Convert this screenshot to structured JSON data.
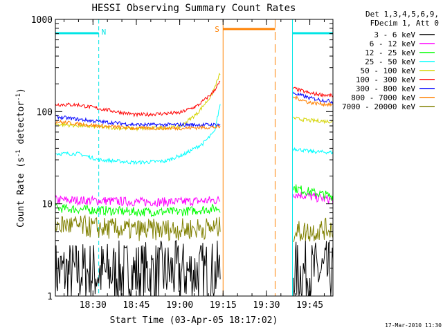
{
  "chart_data": {
    "type": "line",
    "title": "HESSI Observing Summary Count Rates",
    "xlabel": "Start Time (03-Apr-05 18:17:02)",
    "ylabel_main": "Count Rate (s",
    "ylabel_sup1": "-1",
    "ylabel_mid": " detector",
    "ylabel_sup2": "-1",
    "ylabel_end": ")",
    "yscale": "log",
    "ylim": [
      1,
      1000
    ],
    "xlim": [
      "18:17",
      "19:53"
    ],
    "x_ticks": [
      "18:30",
      "18:45",
      "19:00",
      "19:15",
      "19:30",
      "19:45"
    ],
    "y_ticks": [
      "1",
      "10",
      "100",
      "1000"
    ],
    "grid": false,
    "legend_placement": "right",
    "legend_header": [
      "Det 1,3,4,5,6,9,",
      "FDecim 1, Att 0"
    ],
    "timestamp": "17-Mar-2010 11:30",
    "flags": {
      "night_color": "#00e5e5",
      "saa_color": "#ff8000",
      "night_label": "N",
      "saa_label": "S",
      "night_intervals": [
        [
          "18:17",
          "18:32"
        ],
        [
          "19:39",
          "19:53"
        ]
      ],
      "saa_interval": [
        "19:15",
        "19:33"
      ],
      "gaps": [
        [
          "19:14",
          "19:39"
        ]
      ]
    },
    "series": [
      {
        "name": "3 - 6 keV",
        "color": "#000000",
        "x": [
          "18:17",
          "18:32",
          "18:45",
          "19:00",
          "19:14",
          "19:39",
          "19:53"
        ],
        "y": [
          1.8,
          1.8,
          1.8,
          1.8,
          1.8,
          1.8,
          1.8
        ]
      },
      {
        "name": "6 - 12 keV",
        "color": "#ff00ff",
        "x": [
          "18:17",
          "18:32",
          "18:45",
          "19:00",
          "19:14",
          "19:39",
          "19:45",
          "19:53"
        ],
        "y": [
          11,
          10.8,
          10.5,
          10.5,
          11,
          13,
          12,
          11
        ]
      },
      {
        "name": "12 - 25 keV",
        "color": "#00ff00",
        "x": [
          "18:17",
          "18:32",
          "18:45",
          "19:00",
          "19:14",
          "19:39",
          "19:45",
          "19:53"
        ],
        "y": [
          9,
          8.5,
          8.2,
          8.2,
          9,
          15,
          13.5,
          12
        ]
      },
      {
        "name": "25 - 50 keV",
        "color": "#00ffff",
        "x": [
          "18:17",
          "18:25",
          "18:32",
          "18:45",
          "18:55",
          "19:02",
          "19:08",
          "19:12",
          "19:14",
          "19:39",
          "19:45",
          "19:53"
        ],
        "y": [
          35,
          35,
          30,
          28,
          29,
          35,
          45,
          60,
          120,
          40,
          37,
          36
        ]
      },
      {
        "name": "50 - 100 keV",
        "color": "#d4d400",
        "x": [
          "18:17",
          "18:32",
          "18:45",
          "19:00",
          "19:06",
          "19:11",
          "19:14",
          "19:39",
          "19:45",
          "19:53"
        ],
        "y": [
          73,
          68,
          65,
          68,
          95,
          150,
          260,
          85,
          80,
          78
        ]
      },
      {
        "name": "100 - 300 keV",
        "color": "#ff0000",
        "x": [
          "18:17",
          "18:25",
          "18:32",
          "18:45",
          "19:00",
          "19:06",
          "19:11",
          "19:14",
          "19:39",
          "19:45",
          "19:53"
        ],
        "y": [
          120,
          118,
          108,
          92,
          97,
          115,
          155,
          210,
          180,
          158,
          148
        ]
      },
      {
        "name": "300 - 800 keV",
        "color": "#0000ff",
        "x": [
          "18:17",
          "18:32",
          "18:45",
          "19:00",
          "19:14",
          "19:39",
          "19:45",
          "19:53"
        ],
        "y": [
          88,
          78,
          72,
          72,
          72,
          160,
          140,
          128
        ]
      },
      {
        "name": "800 - 7000 keV",
        "color": "#ff8000",
        "x": [
          "18:17",
          "18:32",
          "18:45",
          "19:00",
          "19:14",
          "19:39",
          "19:45",
          "19:53"
        ],
        "y": [
          78,
          70,
          66,
          66,
          68,
          145,
          125,
          118
        ]
      },
      {
        "name": "7000 - 20000 keV",
        "color": "#808000",
        "x": [
          "18:17",
          "18:32",
          "18:45",
          "19:00",
          "19:14",
          "19:39",
          "19:45",
          "19:53"
        ],
        "y": [
          6,
          5.5,
          5.2,
          5.3,
          5.5,
          5,
          5,
          5.5
        ]
      }
    ]
  }
}
